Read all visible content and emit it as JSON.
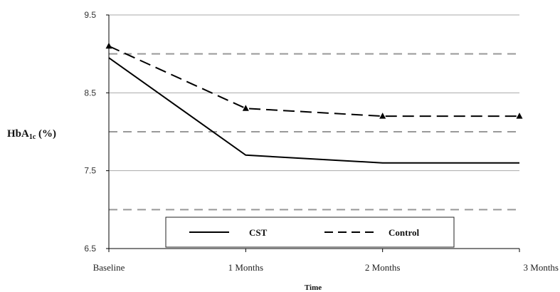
{
  "chart_data": {
    "type": "line",
    "categories": [
      "Baseline",
      "1 Months",
      "2 Months",
      "3 Months"
    ],
    "series": [
      {
        "name": "CST",
        "values": [
          8.95,
          7.7,
          7.6,
          7.6
        ],
        "style": "solid",
        "marker": "none",
        "color": "#000000"
      },
      {
        "name": "Control",
        "values": [
          9.1,
          8.3,
          8.2,
          8.2
        ],
        "style": "dashed",
        "marker": "triangle",
        "color": "#000000"
      }
    ],
    "title": "",
    "xlabel": "Time",
    "ylabel_main": "HbA",
    "ylabel_sub": "1c",
    "ylabel_suffix": " (%)",
    "ylim": [
      6.5,
      9.5
    ],
    "yticks": [
      9.5,
      8.5,
      7.5,
      6.5
    ],
    "ytick_labels": [
      "9.5",
      "8.5",
      "7.5",
      "6.5"
    ],
    "gridlines_solid": [
      9.5,
      8.5,
      7.5
    ],
    "gridlines_dashed": [
      9,
      8,
      7
    ],
    "legend_position": "bottom-center inside",
    "colors": {
      "grid_solid": "#aaaaaa",
      "grid_dashed": "#999999",
      "axis": "#000000"
    }
  }
}
